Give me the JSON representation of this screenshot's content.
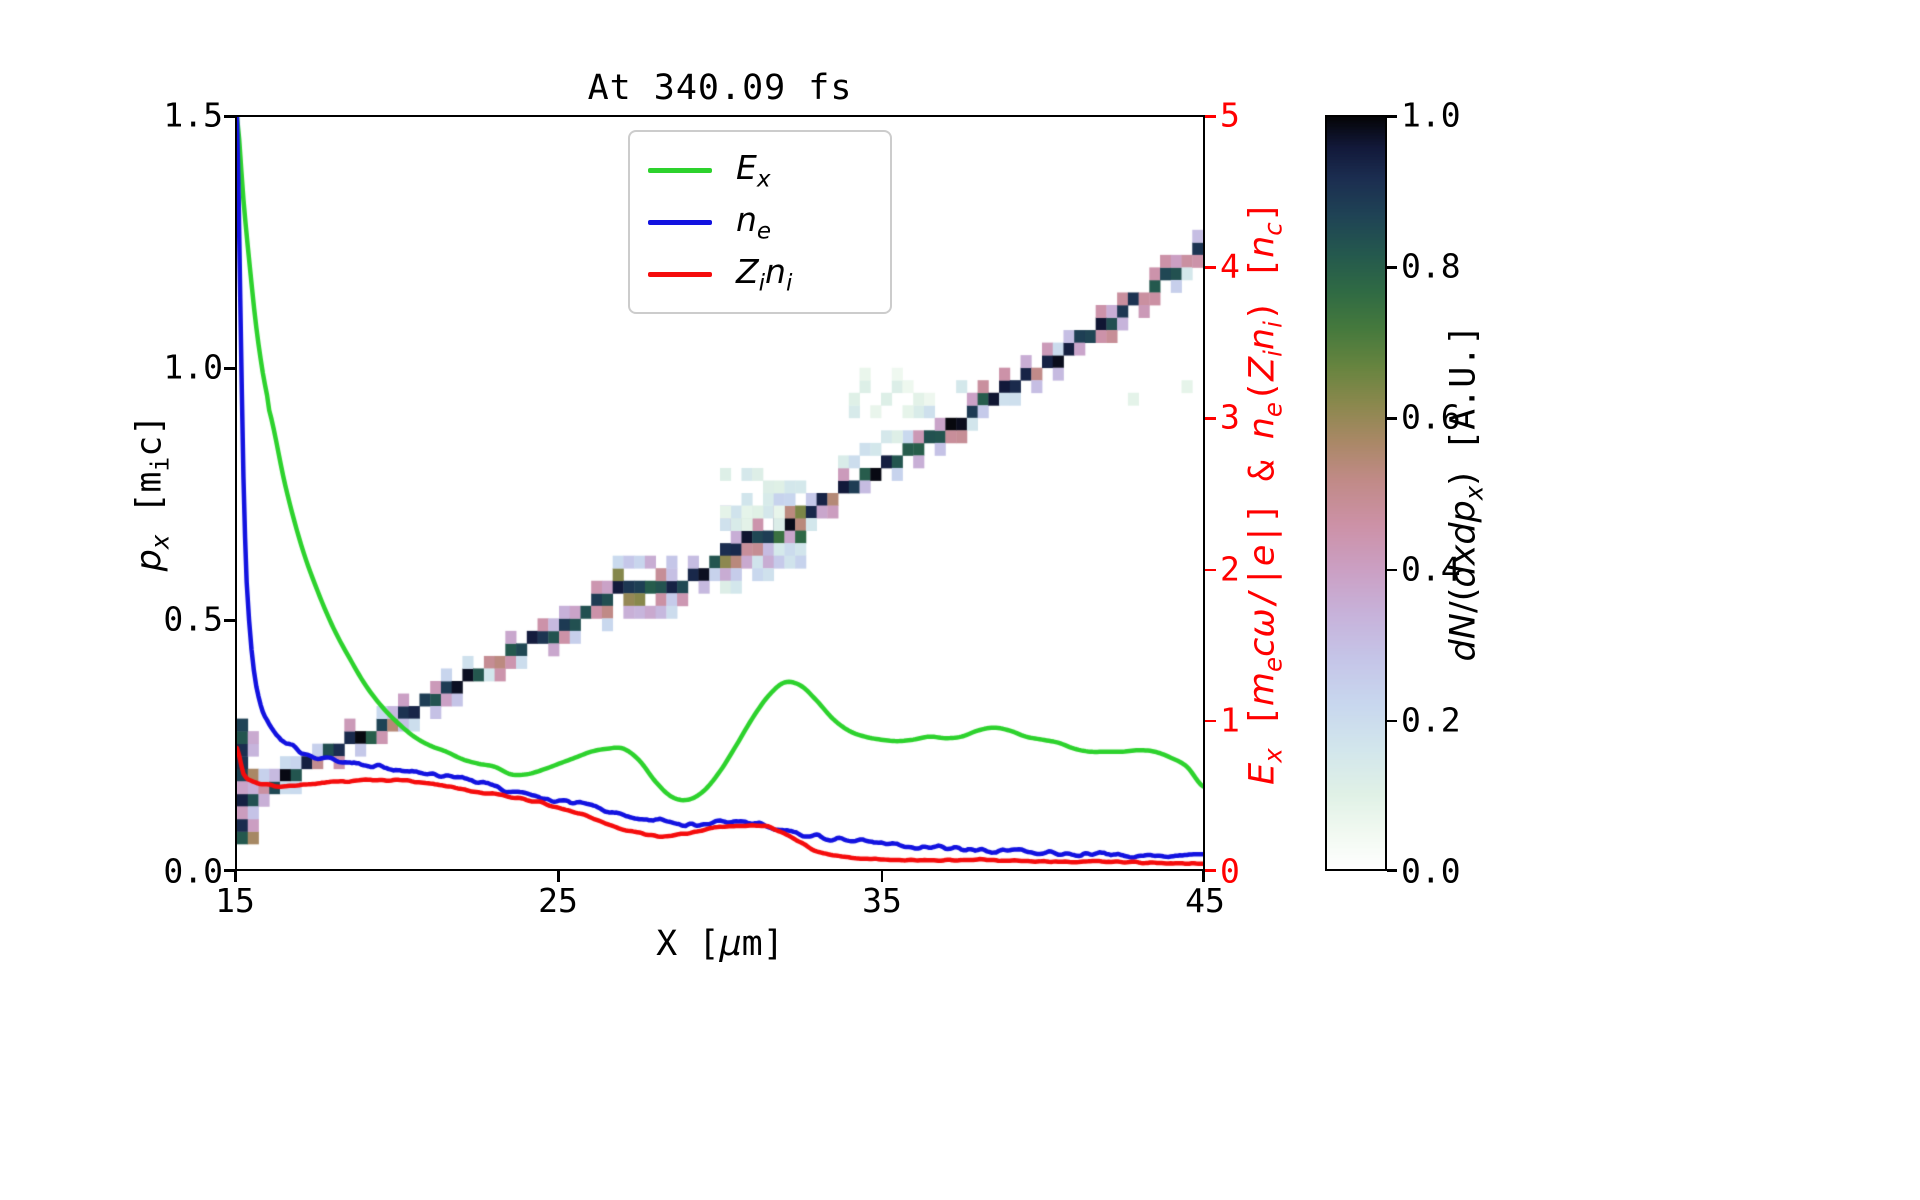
{
  "title": "At 340.09 fs",
  "colors": {
    "ex_line": "#2dd22d",
    "ne_line": "#1212e0",
    "zini_line": "#f50c0c",
    "right_axis": "#ff0000",
    "axes_border": "#000000",
    "legend_border": "#cccccc"
  },
  "axes": {
    "x_ticks": [
      "15",
      "25",
      "35",
      "45"
    ],
    "y_ticks_left": [
      "1.5",
      "1.0",
      "0.5",
      "0.0"
    ],
    "y_ticks_right": [
      "5",
      "4",
      "3",
      "2",
      "1",
      "0"
    ],
    "colorbar_ticks": [
      "1.0",
      "0.8",
      "0.6",
      "0.4",
      "0.2",
      "0.0"
    ]
  },
  "labels": {
    "xlabel_segments": [
      {
        "t": "X ["
      },
      {
        "t": "μ",
        "i": 1
      },
      {
        "t": "m]"
      }
    ],
    "ylabel_left_segments": [
      {
        "t": "p",
        "i": 1
      },
      {
        "t": "x",
        "i": 1,
        "s": 1
      },
      {
        "t": " [m"
      },
      {
        "t": "i",
        "s": 1
      },
      {
        "t": "c]"
      }
    ],
    "ylabel_right_segments": [
      {
        "t": "E",
        "i": 1
      },
      {
        "t": "x",
        "i": 1,
        "s": 1
      },
      {
        "t": " ["
      },
      {
        "t": "m",
        "i": 1
      },
      {
        "t": "e",
        "i": 1,
        "s": 1
      },
      {
        "t": "c",
        "i": 1
      },
      {
        "t": "ω",
        "i": 1
      },
      {
        "t": "/|"
      },
      {
        "t": "e",
        "i": 1
      },
      {
        "t": "|]"
      },
      {
        "t": " & "
      },
      {
        "t": "n",
        "i": 1
      },
      {
        "t": "e",
        "i": 1,
        "s": 1
      },
      {
        "t": "("
      },
      {
        "t": "Z",
        "i": 1
      },
      {
        "t": "i",
        "i": 1,
        "s": 1
      },
      {
        "t": "n",
        "i": 1
      },
      {
        "t": "i",
        "i": 1,
        "s": 1
      },
      {
        "t": ")"
      },
      {
        "t": " ["
      },
      {
        "t": "n",
        "i": 1
      },
      {
        "t": "c",
        "i": 1,
        "s": 1
      },
      {
        "t": "]"
      }
    ],
    "colorbar_label_segments": [
      {
        "t": "dN",
        "i": 1
      },
      {
        "t": "/(",
        "rm": 1
      },
      {
        "t": "dxdp",
        "i": 1
      },
      {
        "t": "x",
        "i": 1,
        "s": 1
      },
      {
        "t": ")",
        "rm": 1
      },
      {
        "t": " [A.U.]"
      }
    ]
  },
  "legend": {
    "entries": [
      {
        "name": "E_x",
        "color": "#2dd22d",
        "segments": [
          {
            "t": "E",
            "i": 1
          },
          {
            "t": "x",
            "i": 1,
            "s": 1
          }
        ]
      },
      {
        "name": "n_e",
        "color": "#1212e0",
        "segments": [
          {
            "t": "n",
            "i": 1
          },
          {
            "t": "e",
            "i": 1,
            "s": 1
          }
        ]
      },
      {
        "name": "Z_i n_i",
        "color": "#f50c0c",
        "segments": [
          {
            "t": "Z",
            "i": 1
          },
          {
            "t": "i",
            "i": 1,
            "s": 1
          },
          {
            "t": "n",
            "i": 1
          },
          {
            "t": "i",
            "i": 1,
            "s": 1
          }
        ]
      }
    ]
  },
  "chart_data": {
    "type": [
      "heatmap",
      "line"
    ],
    "title": "At 340.09 fs",
    "xlabel": "X [μm]",
    "ylabel_left": "p_x [m_i c]",
    "ylabel_right": "E_x [m_e c ω/|e|] & n_e(Z_i n_i) [n_c]",
    "colorbar_label": "dN/(dxdp_x) [A.U.]",
    "xlim": [
      15,
      45
    ],
    "ylim_left": [
      0.0,
      1.5
    ],
    "ylim_right": [
      0,
      5
    ],
    "colorbar_lim": [
      0.0,
      1.0
    ],
    "legend_position": "upper center-left inside axes",
    "grid": false,
    "series": [
      {
        "name": "E_x",
        "axis": "right",
        "color": "#2dd22d",
        "noise": 0,
        "x": [
          15.0,
          15.2,
          15.4,
          15.6,
          15.8,
          16.0,
          16.5,
          17.0,
          17.5,
          18.0,
          18.5,
          19.0,
          19.5,
          20.0,
          20.5,
          21.0,
          21.5,
          22.0,
          22.5,
          23.0,
          23.5,
          24.0,
          24.5,
          25.0,
          25.5,
          26.0,
          26.5,
          27.0,
          27.5,
          28.0,
          28.5,
          29.0,
          29.5,
          30.0,
          30.5,
          31.0,
          31.5,
          32.0,
          32.5,
          33.0,
          33.5,
          34.0,
          34.5,
          35.0,
          35.5,
          36.0,
          36.5,
          37.0,
          37.5,
          38.0,
          38.5,
          39.0,
          39.5,
          40.0,
          40.5,
          41.0,
          41.5,
          42.0,
          42.5,
          43.0,
          43.5,
          44.0,
          44.5,
          45.0
        ],
        "y": [
          5.0,
          4.45,
          4.0,
          3.6,
          3.3,
          3.05,
          2.55,
          2.15,
          1.85,
          1.6,
          1.4,
          1.22,
          1.08,
          0.97,
          0.88,
          0.82,
          0.78,
          0.73,
          0.7,
          0.68,
          0.63,
          0.63,
          0.66,
          0.7,
          0.74,
          0.78,
          0.8,
          0.8,
          0.72,
          0.58,
          0.48,
          0.46,
          0.52,
          0.65,
          0.82,
          1.0,
          1.15,
          1.24,
          1.22,
          1.12,
          1.0,
          0.92,
          0.88,
          0.86,
          0.85,
          0.86,
          0.88,
          0.87,
          0.88,
          0.92,
          0.94,
          0.92,
          0.88,
          0.86,
          0.84,
          0.8,
          0.78,
          0.78,
          0.78,
          0.79,
          0.78,
          0.74,
          0.68,
          0.55
        ]
      },
      {
        "name": "n_e",
        "axis": "right",
        "color": "#1212e0",
        "noise": 0.009,
        "x": [
          15.0,
          15.1,
          15.2,
          15.3,
          15.45,
          15.6,
          15.8,
          16.0,
          16.3,
          16.6,
          17.0,
          17.5,
          18.0,
          18.5,
          19.0,
          19.5,
          20.0,
          20.5,
          21.0,
          21.5,
          22.0,
          22.5,
          23.0,
          23.5,
          24.0,
          24.5,
          25.0,
          25.5,
          26.0,
          26.5,
          27.0,
          27.5,
          28.0,
          28.5,
          29.0,
          29.5,
          30.0,
          30.5,
          31.0,
          31.5,
          32.0,
          32.5,
          33.0,
          33.5,
          34.0,
          34.5,
          35.0,
          35.5,
          36.0,
          36.5,
          37.0,
          37.5,
          38.0,
          38.5,
          39.0,
          39.5,
          40.0,
          40.5,
          41.0,
          41.5,
          42.0,
          42.5,
          43.0,
          43.5,
          44.0,
          44.5,
          45.0
        ],
        "y": [
          5.0,
          3.8,
          2.6,
          1.9,
          1.45,
          1.2,
          1.05,
          0.95,
          0.87,
          0.82,
          0.77,
          0.74,
          0.72,
          0.71,
          0.7,
          0.68,
          0.66,
          0.645,
          0.63,
          0.615,
          0.6,
          0.575,
          0.55,
          0.52,
          0.5,
          0.47,
          0.45,
          0.44,
          0.42,
          0.38,
          0.36,
          0.34,
          0.33,
          0.305,
          0.3,
          0.3,
          0.31,
          0.31,
          0.3,
          0.29,
          0.26,
          0.24,
          0.225,
          0.21,
          0.2,
          0.19,
          0.175,
          0.16,
          0.15,
          0.145,
          0.14,
          0.135,
          0.13,
          0.125,
          0.12,
          0.115,
          0.11,
          0.105,
          0.1,
          0.1,
          0.1,
          0.095,
          0.09,
          0.09,
          0.088,
          0.085,
          0.08
        ]
      },
      {
        "name": "Z_i n_i",
        "axis": "right",
        "color": "#f50c0c",
        "noise": 0.003,
        "x": [
          15.0,
          15.2,
          15.5,
          16.0,
          16.5,
          17.0,
          17.5,
          18.0,
          18.5,
          19.0,
          19.5,
          20.0,
          20.5,
          21.0,
          21.5,
          22.0,
          22.5,
          23.0,
          23.5,
          24.0,
          24.5,
          25.0,
          25.5,
          26.0,
          26.5,
          27.0,
          27.5,
          28.0,
          28.5,
          29.0,
          29.5,
          30.0,
          30.5,
          31.0,
          31.5,
          32.0,
          32.5,
          33.0,
          33.5,
          34.0,
          34.5,
          35.0,
          35.5,
          36.0,
          36.5,
          37.0,
          37.5,
          38.0,
          38.5,
          39.0,
          39.5,
          40.0,
          40.5,
          41.0,
          41.5,
          42.0,
          42.5,
          43.0,
          43.5,
          44.0,
          44.5,
          45.0
        ],
        "y": [
          0.8,
          0.63,
          0.58,
          0.56,
          0.55,
          0.56,
          0.57,
          0.58,
          0.58,
          0.59,
          0.59,
          0.59,
          0.58,
          0.57,
          0.55,
          0.53,
          0.51,
          0.5,
          0.48,
          0.46,
          0.44,
          0.41,
          0.38,
          0.34,
          0.3,
          0.26,
          0.24,
          0.22,
          0.22,
          0.24,
          0.26,
          0.28,
          0.29,
          0.29,
          0.28,
          0.24,
          0.18,
          0.12,
          0.09,
          0.08,
          0.07,
          0.065,
          0.06,
          0.06,
          0.06,
          0.06,
          0.06,
          0.065,
          0.06,
          0.055,
          0.055,
          0.05,
          0.05,
          0.05,
          0.05,
          0.05,
          0.048,
          0.045,
          0.042,
          0.04,
          0.038,
          0.035
        ]
      }
    ],
    "heatmap": {
      "description": "ion phase-space band dN/(dxdp_x), dark diagonal band rising from (15,0.13) to (45,1.245) with dense blobs near x=26.5-28.5 (px~0.55) and x=30-32.5 (px~0.66), faint secondary streaks above band",
      "cell": {
        "dx": 0.3333,
        "dpx": 0.025
      },
      "band": {
        "x": [
          15.0,
          16,
          17,
          18,
          19,
          20,
          21,
          22,
          23,
          24,
          25,
          25.5,
          26,
          26.5,
          27,
          27.5,
          28,
          28.5,
          29,
          29.5,
          30,
          30.5,
          31,
          31.5,
          32,
          32.5,
          33,
          33.5,
          34,
          34.5,
          35,
          36,
          37,
          38,
          39,
          40,
          41,
          42,
          43,
          44,
          45
        ],
        "px": [
          0.13,
          0.165,
          0.2,
          0.235,
          0.27,
          0.3,
          0.335,
          0.37,
          0.41,
          0.445,
          0.48,
          0.5,
          0.525,
          0.545,
          0.555,
          0.555,
          0.555,
          0.56,
          0.58,
          0.6,
          0.625,
          0.645,
          0.66,
          0.67,
          0.685,
          0.7,
          0.72,
          0.74,
          0.76,
          0.78,
          0.8,
          0.84,
          0.88,
          0.92,
          0.96,
          1.0,
          1.045,
          1.09,
          1.14,
          1.19,
          1.245
        ]
      },
      "left_strip": {
        "x0": 15.0,
        "x1": 15.45,
        "p0": 0.07,
        "p1": 0.28
      },
      "blobs": [
        {
          "x0": 26.2,
          "x1": 28.7,
          "extra": 2,
          "mid": 0.5
        },
        {
          "x0": 30.1,
          "x1": 32.7,
          "extra": 3,
          "mid": 0.55
        }
      ],
      "faint": [
        {
          "type": "parallel",
          "x0": 33.5,
          "x1": 38.0,
          "dp": 0.055,
          "v": 0.2
        },
        {
          "type": "box",
          "x0": 34.2,
          "x1": 36.8,
          "p0": 0.9,
          "p1": 0.99,
          "v": 0.14
        },
        {
          "type": "box",
          "x0": 42.0,
          "x1": 45.0,
          "p0": 0.92,
          "p1": 0.99,
          "v": 0.1
        },
        {
          "type": "box",
          "x0": 29.9,
          "x1": 31.9,
          "p0": 0.7,
          "p1": 0.79,
          "v": 0.16
        }
      ],
      "seed": 1337
    },
    "colormap": {
      "name": "cubehelix_r",
      "stops": [
        [
          0.0,
          "#ffffff"
        ],
        [
          0.05,
          "#f1f9f1"
        ],
        [
          0.1,
          "#e0f1e6"
        ],
        [
          0.16,
          "#d2e6ec"
        ],
        [
          0.22,
          "#c8d7ee"
        ],
        [
          0.28,
          "#c5c5e8"
        ],
        [
          0.34,
          "#c7b2da"
        ],
        [
          0.4,
          "#cb9fc3"
        ],
        [
          0.46,
          "#cc91a6"
        ],
        [
          0.52,
          "#c08a86"
        ],
        [
          0.57,
          "#a98866"
        ],
        [
          0.62,
          "#8a884d"
        ],
        [
          0.67,
          "#66843f"
        ],
        [
          0.72,
          "#45793d"
        ],
        [
          0.77,
          "#2f6a44"
        ],
        [
          0.82,
          "#24584e"
        ],
        [
          0.87,
          "#1f4355"
        ],
        [
          0.92,
          "#1b2d50"
        ],
        [
          0.96,
          "#12193a"
        ],
        [
          1.0,
          "#050508"
        ]
      ]
    }
  }
}
